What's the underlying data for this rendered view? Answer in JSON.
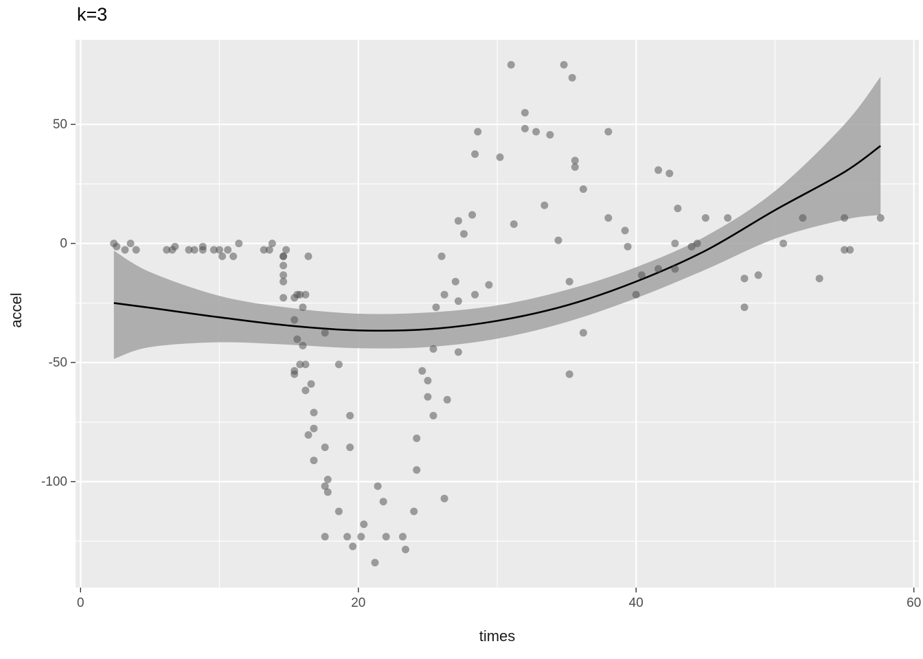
{
  "chart_data": {
    "type": "scatter",
    "title": "k=3",
    "xlabel": "times",
    "ylabel": "accel",
    "x_ticks": [
      0,
      20,
      40,
      60
    ],
    "x_minor_ticks": [
      10,
      30,
      50
    ],
    "y_ticks": [
      50,
      0,
      -50,
      -100
    ],
    "y_minor_ticks": [
      25,
      -25,
      -75,
      -125
    ],
    "xlim": [
      -0.36,
      60.36
    ],
    "ylim": [
      -144.5,
      85.5
    ],
    "grid": true,
    "legend": "none",
    "colors": {
      "panel_bg": "#EBEBEB",
      "grid": "#FFFFFF",
      "point": "#4A4A4A",
      "line": "#000000",
      "ribbon": "#A3A3A3",
      "axis_text": "#4D4D4D",
      "tick_mark": "#333333"
    },
    "points": [
      [
        2.4,
        0
      ],
      [
        2.6,
        -1.3
      ],
      [
        3.2,
        -2.7
      ],
      [
        3.6,
        0
      ],
      [
        4,
        -2.7
      ],
      [
        6.2,
        -2.7
      ],
      [
        6.6,
        -2.7
      ],
      [
        6.8,
        -1.3
      ],
      [
        7.8,
        -2.7
      ],
      [
        8.2,
        -2.7
      ],
      [
        8.8,
        -1.3
      ],
      [
        8.8,
        -2.7
      ],
      [
        9.6,
        -2.7
      ],
      [
        10,
        -2.7
      ],
      [
        10.2,
        -5.4
      ],
      [
        10.6,
        -2.7
      ],
      [
        11,
        -5.4
      ],
      [
        11.4,
        0
      ],
      [
        13.2,
        -2.7
      ],
      [
        13.6,
        -2.7
      ],
      [
        13.8,
        0
      ],
      [
        14.6,
        -13.3
      ],
      [
        14.6,
        -5.4
      ],
      [
        14.6,
        -5.4
      ],
      [
        14.6,
        -9.3
      ],
      [
        14.6,
        -16
      ],
      [
        14.6,
        -22.8
      ],
      [
        14.8,
        -2.7
      ],
      [
        15.4,
        -22.8
      ],
      [
        15.4,
        -32.1
      ],
      [
        15.4,
        -53.5
      ],
      [
        15.4,
        -54.9
      ],
      [
        15.6,
        -40.2
      ],
      [
        15.6,
        -21.5
      ],
      [
        15.8,
        -21.5
      ],
      [
        15.8,
        -50.8
      ],
      [
        16,
        -42.9
      ],
      [
        16,
        -26.8
      ],
      [
        16.2,
        -21.5
      ],
      [
        16.2,
        -50.8
      ],
      [
        16.2,
        -61.7
      ],
      [
        16.4,
        -5.4
      ],
      [
        16.4,
        -80.4
      ],
      [
        16.6,
        -59
      ],
      [
        16.8,
        -71
      ],
      [
        16.8,
        -91.1
      ],
      [
        16.8,
        -77.7
      ],
      [
        17.6,
        -37.5
      ],
      [
        17.6,
        -85.6
      ],
      [
        17.6,
        -123.1
      ],
      [
        17.6,
        -101.9
      ],
      [
        17.8,
        -99.1
      ],
      [
        17.8,
        -104.4
      ],
      [
        18.6,
        -112.5
      ],
      [
        18.6,
        -50.8
      ],
      [
        19.2,
        -123.1
      ],
      [
        19.4,
        -85.6
      ],
      [
        19.4,
        -72.3
      ],
      [
        19.6,
        -127.2
      ],
      [
        20.2,
        -123.1
      ],
      [
        20.4,
        -117.9
      ],
      [
        21.2,
        -134
      ],
      [
        21.4,
        -101.9
      ],
      [
        21.8,
        -108.4
      ],
      [
        22,
        -123.1
      ],
      [
        23.2,
        -123.1
      ],
      [
        23.4,
        -128.5
      ],
      [
        24,
        -112.5
      ],
      [
        24.2,
        -95.1
      ],
      [
        24.2,
        -81.8
      ],
      [
        24.6,
        -53.5
      ],
      [
        25,
        -64.4
      ],
      [
        25,
        -57.6
      ],
      [
        25.4,
        -72.3
      ],
      [
        25.4,
        -44.3
      ],
      [
        25.6,
        -26.8
      ],
      [
        26,
        -5.4
      ],
      [
        26.2,
        -107.1
      ],
      [
        26.2,
        -21.5
      ],
      [
        26.4,
        -65.6
      ],
      [
        27,
        -16
      ],
      [
        27.2,
        -45.6
      ],
      [
        27.2,
        -24.2
      ],
      [
        27.2,
        9.5
      ],
      [
        27.6,
        4
      ],
      [
        28.2,
        12
      ],
      [
        28.4,
        -21.5
      ],
      [
        28.4,
        37.5
      ],
      [
        28.6,
        46.9
      ],
      [
        29.4,
        -17.4
      ],
      [
        30.2,
        36.2
      ],
      [
        31,
        75
      ],
      [
        31.2,
        8.1
      ],
      [
        32,
        54.9
      ],
      [
        32,
        48.2
      ],
      [
        32.8,
        46.9
      ],
      [
        33.4,
        16
      ],
      [
        33.8,
        45.6
      ],
      [
        34.4,
        1.3
      ],
      [
        34.8,
        75
      ],
      [
        35.2,
        -16
      ],
      [
        35.2,
        -54.9
      ],
      [
        35.4,
        69.6
      ],
      [
        35.6,
        34.8
      ],
      [
        35.6,
        32.1
      ],
      [
        36.2,
        -37.5
      ],
      [
        36.2,
        22.8
      ],
      [
        38,
        46.9
      ],
      [
        38,
        10.7
      ],
      [
        39.2,
        5.4
      ],
      [
        39.4,
        -1.3
      ],
      [
        40,
        -21.5
      ],
      [
        40.4,
        -13.3
      ],
      [
        41.6,
        30.8
      ],
      [
        41.6,
        -10.7
      ],
      [
        42.4,
        29.4
      ],
      [
        42.8,
        0
      ],
      [
        42.8,
        -10.7
      ],
      [
        43,
        14.7
      ],
      [
        44,
        -1.3
      ],
      [
        44.4,
        0
      ],
      [
        45,
        10.7
      ],
      [
        46.6,
        10.7
      ],
      [
        47.8,
        -26.8
      ],
      [
        47.8,
        -14.7
      ],
      [
        48.8,
        -13.3
      ],
      [
        50.6,
        0
      ],
      [
        52,
        10.7
      ],
      [
        53.2,
        -14.7
      ],
      [
        55,
        -2.7
      ],
      [
        55,
        10.7
      ],
      [
        55.4,
        -2.7
      ],
      [
        57.6,
        10.7
      ]
    ],
    "smooth": {
      "x": [
        2.4,
        5,
        10,
        15,
        20,
        25,
        30,
        35,
        40,
        45,
        50,
        55,
        57.6
      ],
      "y": [
        -25,
        -27,
        -31,
        -34.5,
        -36.5,
        -36,
        -32.5,
        -26,
        -16,
        -3,
        14,
        30,
        41
      ],
      "upper": [
        -3,
        -12,
        -22,
        -27,
        -29.5,
        -29,
        -26,
        -19.5,
        -10,
        3,
        22,
        50,
        70
      ],
      "lower": [
        -48.5,
        -43.5,
        -41.5,
        -42.5,
        -44,
        -43.5,
        -40,
        -33,
        -23,
        -11,
        2,
        10,
        12
      ]
    }
  }
}
